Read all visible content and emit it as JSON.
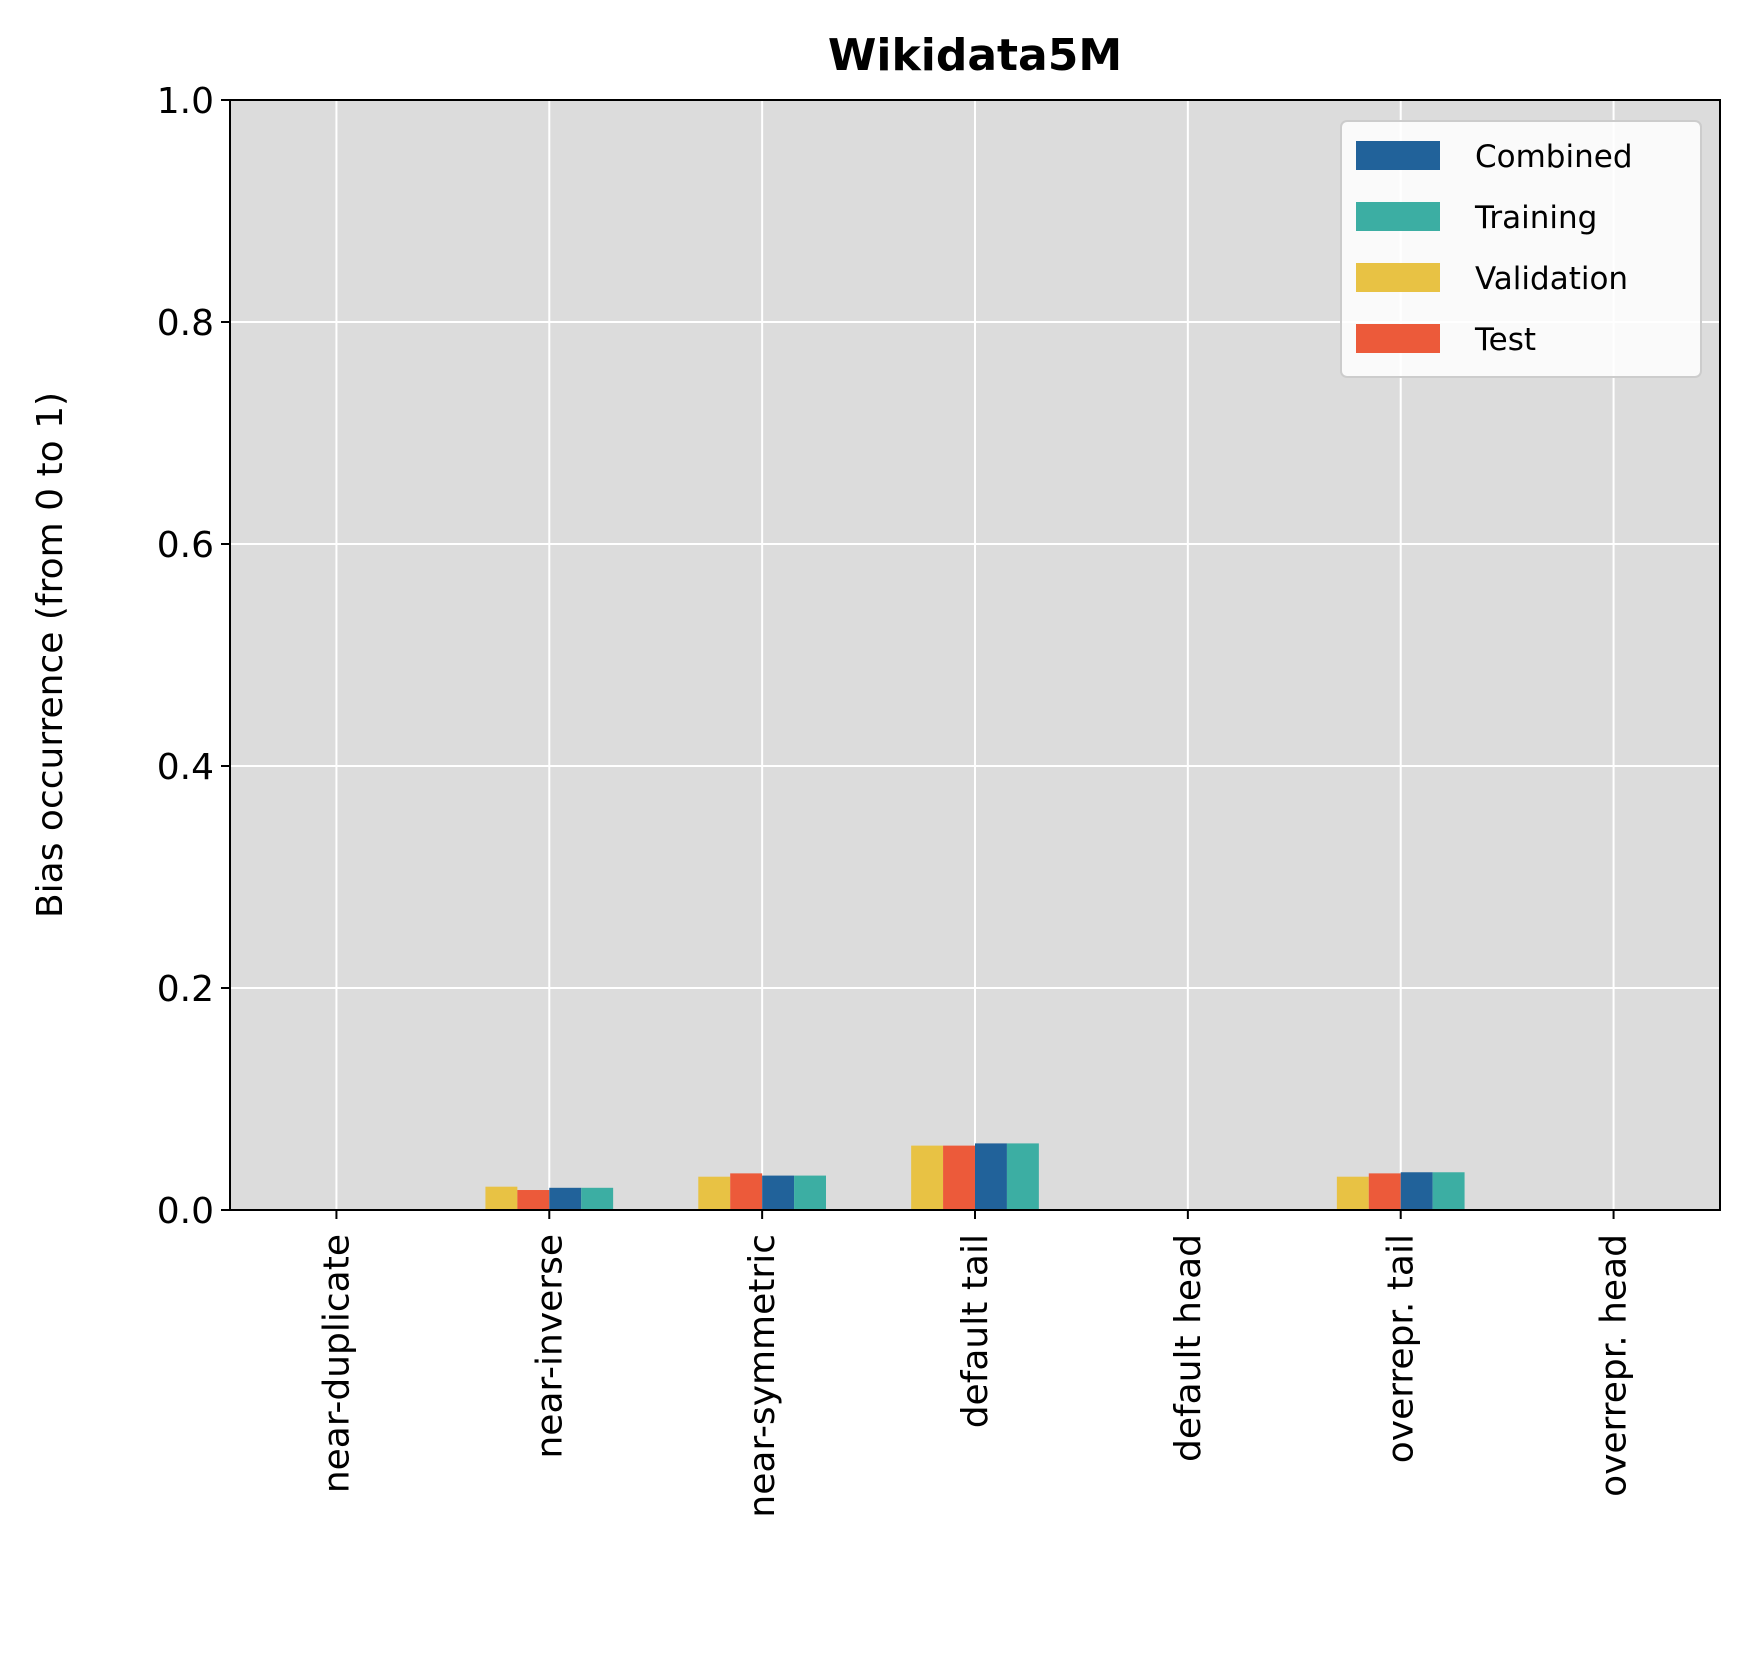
{
  "chart_data": {
    "type": "bar",
    "title": "Wikidata5M",
    "xlabel": "",
    "ylabel": "Bias occurrence (from 0 to 1)",
    "ylim": [
      0,
      1
    ],
    "yticks": [
      "0.0",
      "0.2",
      "0.4",
      "0.6",
      "0.8",
      "1.0"
    ],
    "grid": true,
    "legend_position": "top-right",
    "categories": [
      "near-duplicate",
      "near-inverse",
      "near-symmetric",
      "default tail",
      "default head",
      "overrepr. tail",
      "overrepr. head"
    ],
    "series": [
      {
        "name": "Validation",
        "color": "#e8c244",
        "values": [
          0.0,
          0.021,
          0.03,
          0.058,
          0.0,
          0.03,
          0.0
        ]
      },
      {
        "name": "Test",
        "color": "#ec5a3a",
        "values": [
          0.0,
          0.018,
          0.033,
          0.058,
          0.0,
          0.033,
          0.0
        ]
      },
      {
        "name": "Combined",
        "color": "#21629a",
        "values": [
          0.0,
          0.02,
          0.031,
          0.06,
          0.0,
          0.034,
          0.0
        ]
      },
      {
        "name": "Training",
        "color": "#3caea3",
        "values": [
          0.0,
          0.02,
          0.031,
          0.06,
          0.0,
          0.034,
          0.0
        ]
      }
    ],
    "legend_order": [
      "Combined",
      "Training",
      "Validation",
      "Test"
    ],
    "plot_background": "#dcdcdc",
    "grid_color": "#ffffff"
  }
}
